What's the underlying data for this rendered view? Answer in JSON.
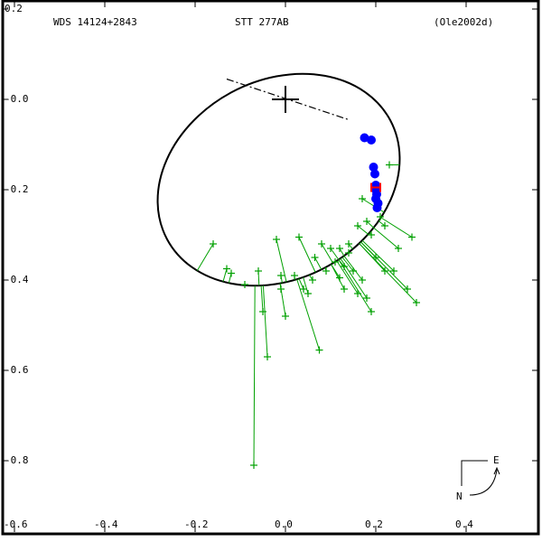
{
  "header": {
    "wds_id": "WDS 14124+2843",
    "discoverer": "STT 277AB",
    "orbit_ref": "(Ole2002d)"
  },
  "compass": {
    "north_label": "N",
    "east_label": "E"
  },
  "colors": {
    "orbit": "#000000",
    "micrometer_measures": "#00a000",
    "speckle_measures": "#0000ff",
    "hipparcos": "#ff0000",
    "axes": "#000000"
  },
  "chart_data": {
    "type": "scatter",
    "title": "WDS 14124+2843  STT 277AB  (Ole2002d)",
    "xlabel": "",
    "ylabel": "",
    "xlim": [
      -0.6,
      0.55
    ],
    "ylim": [
      -0.9,
      0.2
    ],
    "x_ticks": [
      "-0.6",
      "-0.4",
      "-0.2",
      "0.0",
      "0.2",
      "0.4"
    ],
    "y_ticks": [
      "0.2",
      "0.0",
      "-0.2",
      "-0.4",
      "-0.6",
      "-0.8"
    ],
    "grid": false,
    "orbit_ellipse": {
      "center": [
        -0.015,
        -0.178
      ],
      "semi_major": 0.28,
      "semi_minor": 0.22,
      "angle_deg": -28
    },
    "primary_star": [
      0.0,
      0.0
    ],
    "line_of_nodes": [
      [
        -0.13,
        0.045
      ],
      [
        0.14,
        -0.045
      ]
    ],
    "series": [
      {
        "name": "Speckle (blue filled)",
        "marker": "circle",
        "points": [
          [
            0.175,
            -0.085
          ],
          [
            0.19,
            -0.09
          ],
          [
            0.195,
            -0.15
          ],
          [
            0.198,
            -0.165
          ],
          [
            0.2,
            -0.19
          ],
          [
            0.2,
            -0.2
          ],
          [
            0.202,
            -0.21
          ],
          [
            0.2,
            -0.22
          ],
          [
            0.205,
            -0.23
          ],
          [
            0.203,
            -0.24
          ]
        ]
      },
      {
        "name": "Hipparcos",
        "marker": "H",
        "points": [
          [
            0.2,
            -0.195
          ]
        ]
      },
      {
        "name": "Micrometer (green plus)",
        "marker": "plus",
        "points": [
          [
            -0.16,
            -0.32
          ],
          [
            -0.13,
            -0.375
          ],
          [
            -0.12,
            -0.385
          ],
          [
            -0.09,
            -0.41
          ],
          [
            -0.06,
            -0.38
          ],
          [
            -0.05,
            -0.47
          ],
          [
            -0.04,
            -0.57
          ],
          [
            -0.07,
            -0.81
          ],
          [
            -0.02,
            -0.31
          ],
          [
            -0.01,
            -0.39
          ],
          [
            0.0,
            -0.48
          ],
          [
            -0.01,
            -0.42
          ],
          [
            0.02,
            -0.39
          ],
          [
            0.03,
            -0.305
          ],
          [
            0.04,
            -0.42
          ],
          [
            0.05,
            -0.43
          ],
          [
            0.06,
            -0.4
          ],
          [
            0.065,
            -0.35
          ],
          [
            0.08,
            -0.32
          ],
          [
            0.09,
            -0.38
          ],
          [
            0.075,
            -0.555
          ],
          [
            0.1,
            -0.33
          ],
          [
            0.11,
            -0.36
          ],
          [
            0.12,
            -0.395
          ],
          [
            0.13,
            -0.37
          ],
          [
            0.14,
            -0.34
          ],
          [
            0.13,
            -0.42
          ],
          [
            0.15,
            -0.38
          ],
          [
            0.16,
            -0.43
          ],
          [
            0.17,
            -0.4
          ],
          [
            0.18,
            -0.44
          ],
          [
            0.19,
            -0.47
          ],
          [
            0.2,
            -0.35
          ],
          [
            0.22,
            -0.38
          ],
          [
            0.24,
            -0.38
          ],
          [
            0.25,
            -0.33
          ],
          [
            0.27,
            -0.42
          ],
          [
            0.28,
            -0.305
          ],
          [
            0.29,
            -0.45
          ],
          [
            0.23,
            -0.145
          ],
          [
            0.17,
            -0.22
          ],
          [
            0.16,
            -0.28
          ],
          [
            0.21,
            -0.26
          ],
          [
            0.22,
            -0.28
          ],
          [
            0.19,
            -0.3
          ],
          [
            0.18,
            -0.27
          ],
          [
            0.14,
            -0.32
          ],
          [
            0.12,
            -0.33
          ]
        ]
      }
    ],
    "annotations": [
      "N",
      "E"
    ]
  }
}
